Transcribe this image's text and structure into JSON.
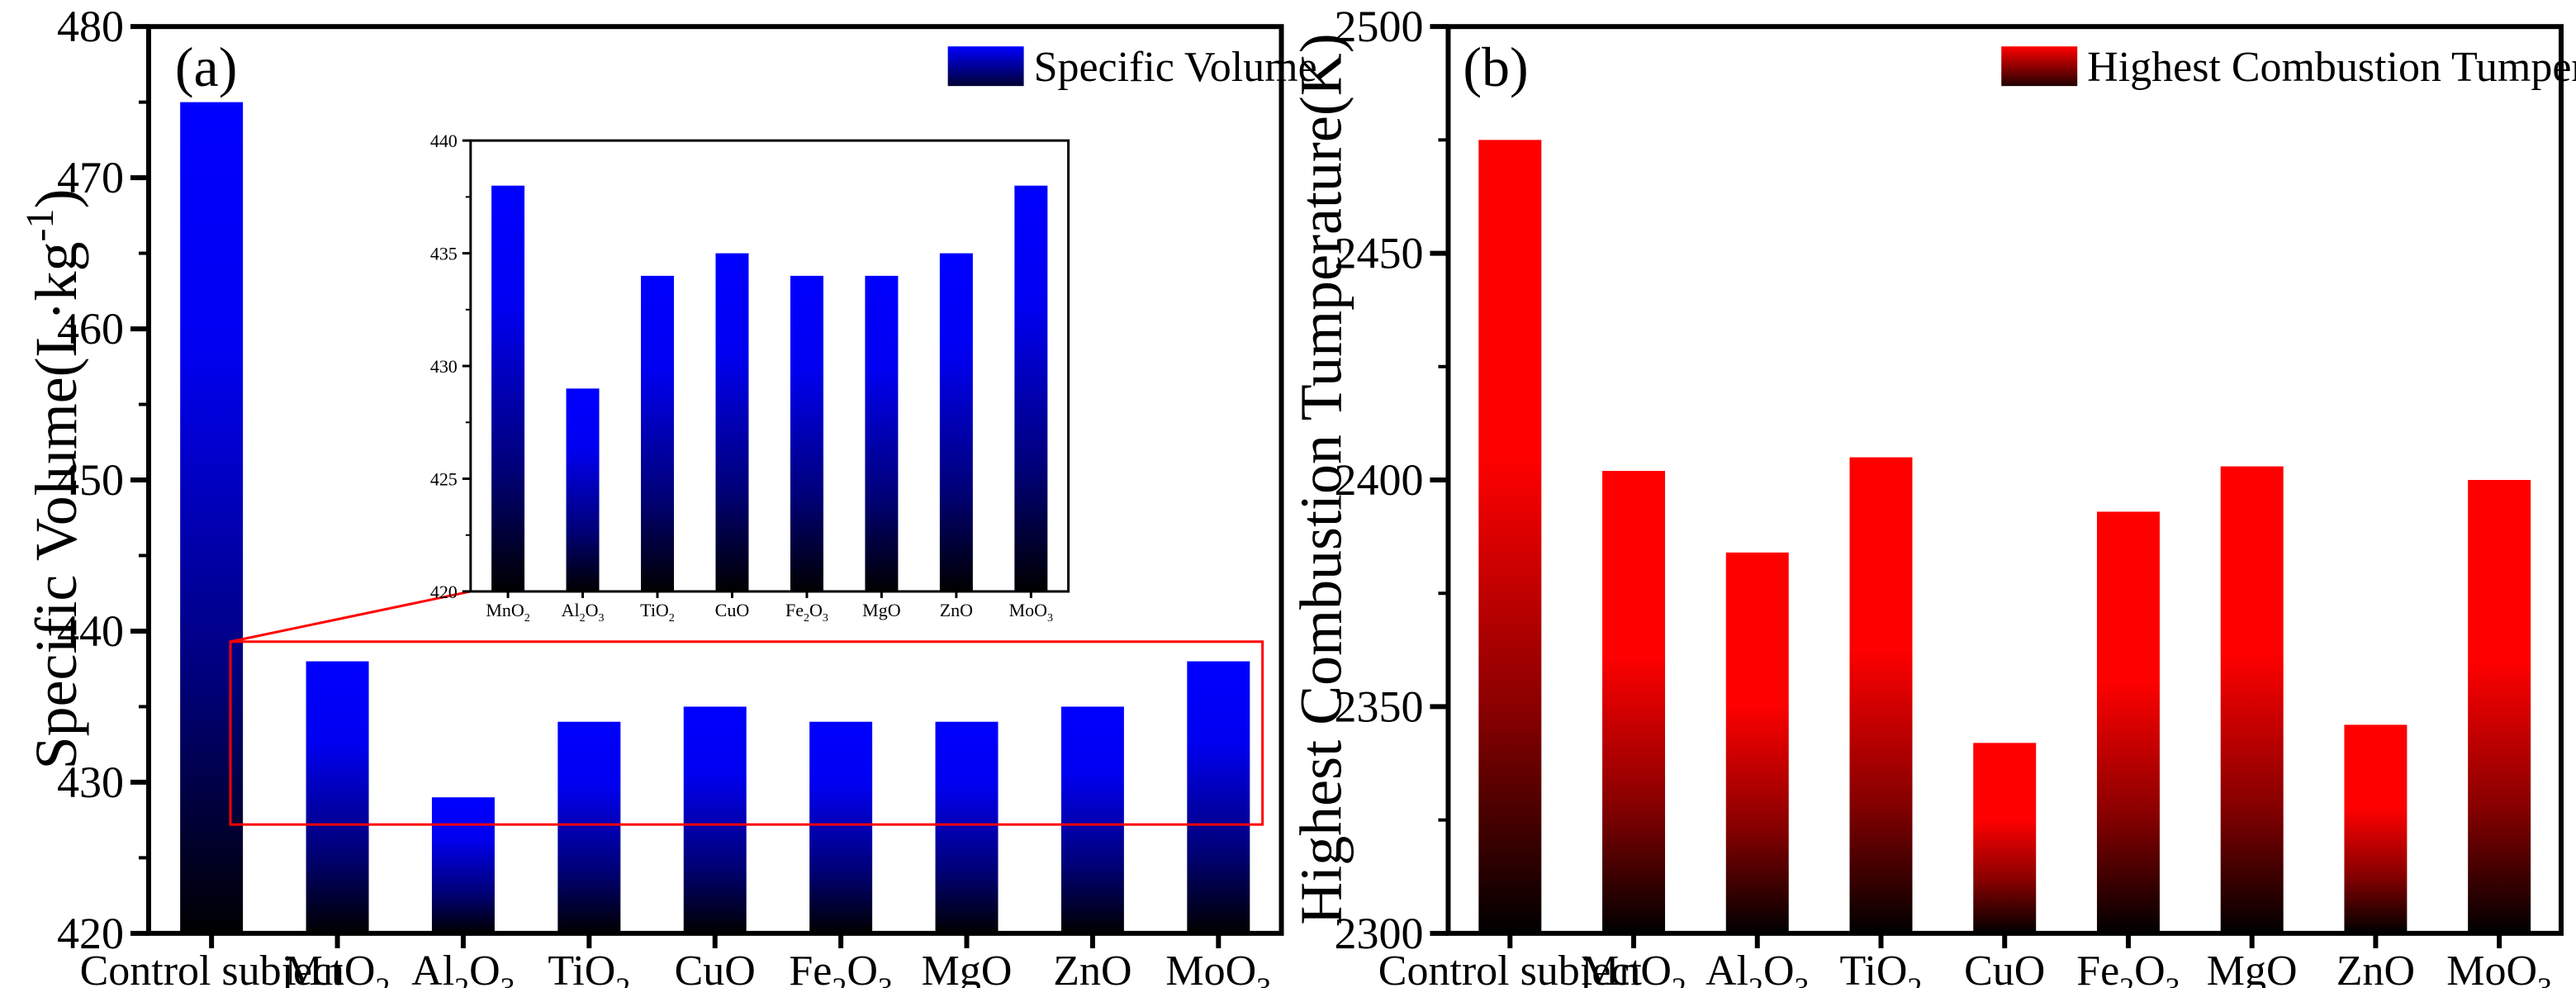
{
  "chart_data": [
    {
      "type": "bar",
      "panel_label": "(a)",
      "ylabel_base": "Specific Volume(L·kg",
      "ylabel_sup": "-1",
      "ylabel_end": ")",
      "xlabel": "",
      "ylim": [
        420,
        480
      ],
      "yticks": [
        "420",
        "430",
        "440",
        "450",
        "460",
        "470",
        "480"
      ],
      "categories": [
        {
          "base": "Control subject",
          "sub": ""
        },
        {
          "base": "MnO",
          "sub": "2"
        },
        {
          "base": "Al",
          "sub": "2",
          "base2": "O",
          "sub2": "3"
        },
        {
          "base": "TiO",
          "sub": "2"
        },
        {
          "base": "CuO",
          "sub": ""
        },
        {
          "base": "Fe",
          "sub": "2",
          "base2": "O",
          "sub2": "3"
        },
        {
          "base": "MgO",
          "sub": ""
        },
        {
          "base": "ZnO",
          "sub": ""
        },
        {
          "base": "MoO",
          "sub": "3"
        }
      ],
      "series": [
        {
          "name": "Specific Volume",
          "values": [
            475,
            438,
            429,
            434,
            435,
            434,
            434,
            435,
            438
          ]
        }
      ],
      "colors": {
        "top": "#0000ff",
        "bottom": "#000000"
      },
      "legend_position": "top-right",
      "grid": false,
      "inset": {
        "ylim": [
          420,
          440
        ],
        "yticks": [
          "420",
          "425",
          "430",
          "435",
          "440"
        ],
        "zoom_region": {
          "categories_from": 1,
          "categories_to": 8,
          "ylim": [
            427.2,
            439.3
          ]
        },
        "categories": [
          {
            "base": "MnO",
            "sub": "2"
          },
          {
            "base": "Al",
            "sub": "2",
            "base2": "O",
            "sub2": "3"
          },
          {
            "base": "TiO",
            "sub": "2"
          },
          {
            "base": "CuO",
            "sub": ""
          },
          {
            "base": "Fe",
            "sub": "2",
            "base2": "O",
            "sub2": "3"
          },
          {
            "base": "MgO",
            "sub": ""
          },
          {
            "base": "ZnO",
            "sub": ""
          },
          {
            "base": "MoO",
            "sub": "3"
          }
        ],
        "values": [
          438,
          429,
          434,
          435,
          434,
          434,
          435,
          438
        ]
      }
    },
    {
      "type": "bar",
      "panel_label": "(b)",
      "ylabel": "Highest Combustion Tumperature(K)",
      "xlabel": "",
      "ylim": [
        2300,
        2500
      ],
      "yticks": [
        "2300",
        "2350",
        "2400",
        "2450",
        "2500"
      ],
      "categories": [
        {
          "base": "Control subject",
          "sub": ""
        },
        {
          "base": "MnO",
          "sub": "2"
        },
        {
          "base": "Al",
          "sub": "2",
          "base2": "O",
          "sub2": "3"
        },
        {
          "base": "TiO",
          "sub": "2"
        },
        {
          "base": "CuO",
          "sub": ""
        },
        {
          "base": "Fe",
          "sub": "2",
          "base2": "O",
          "sub2": "3"
        },
        {
          "base": "MgO",
          "sub": ""
        },
        {
          "base": "ZnO",
          "sub": ""
        },
        {
          "base": "MoO",
          "sub": "3"
        }
      ],
      "series": [
        {
          "name": "Highest Combustion Tumperature",
          "values": [
            2475,
            2402,
            2384,
            2405,
            2342,
            2393,
            2403,
            2346,
            2400
          ]
        }
      ],
      "colors": {
        "top": "#ff0000",
        "bottom": "#000000"
      },
      "legend_position": "top-right",
      "grid": false
    }
  ]
}
